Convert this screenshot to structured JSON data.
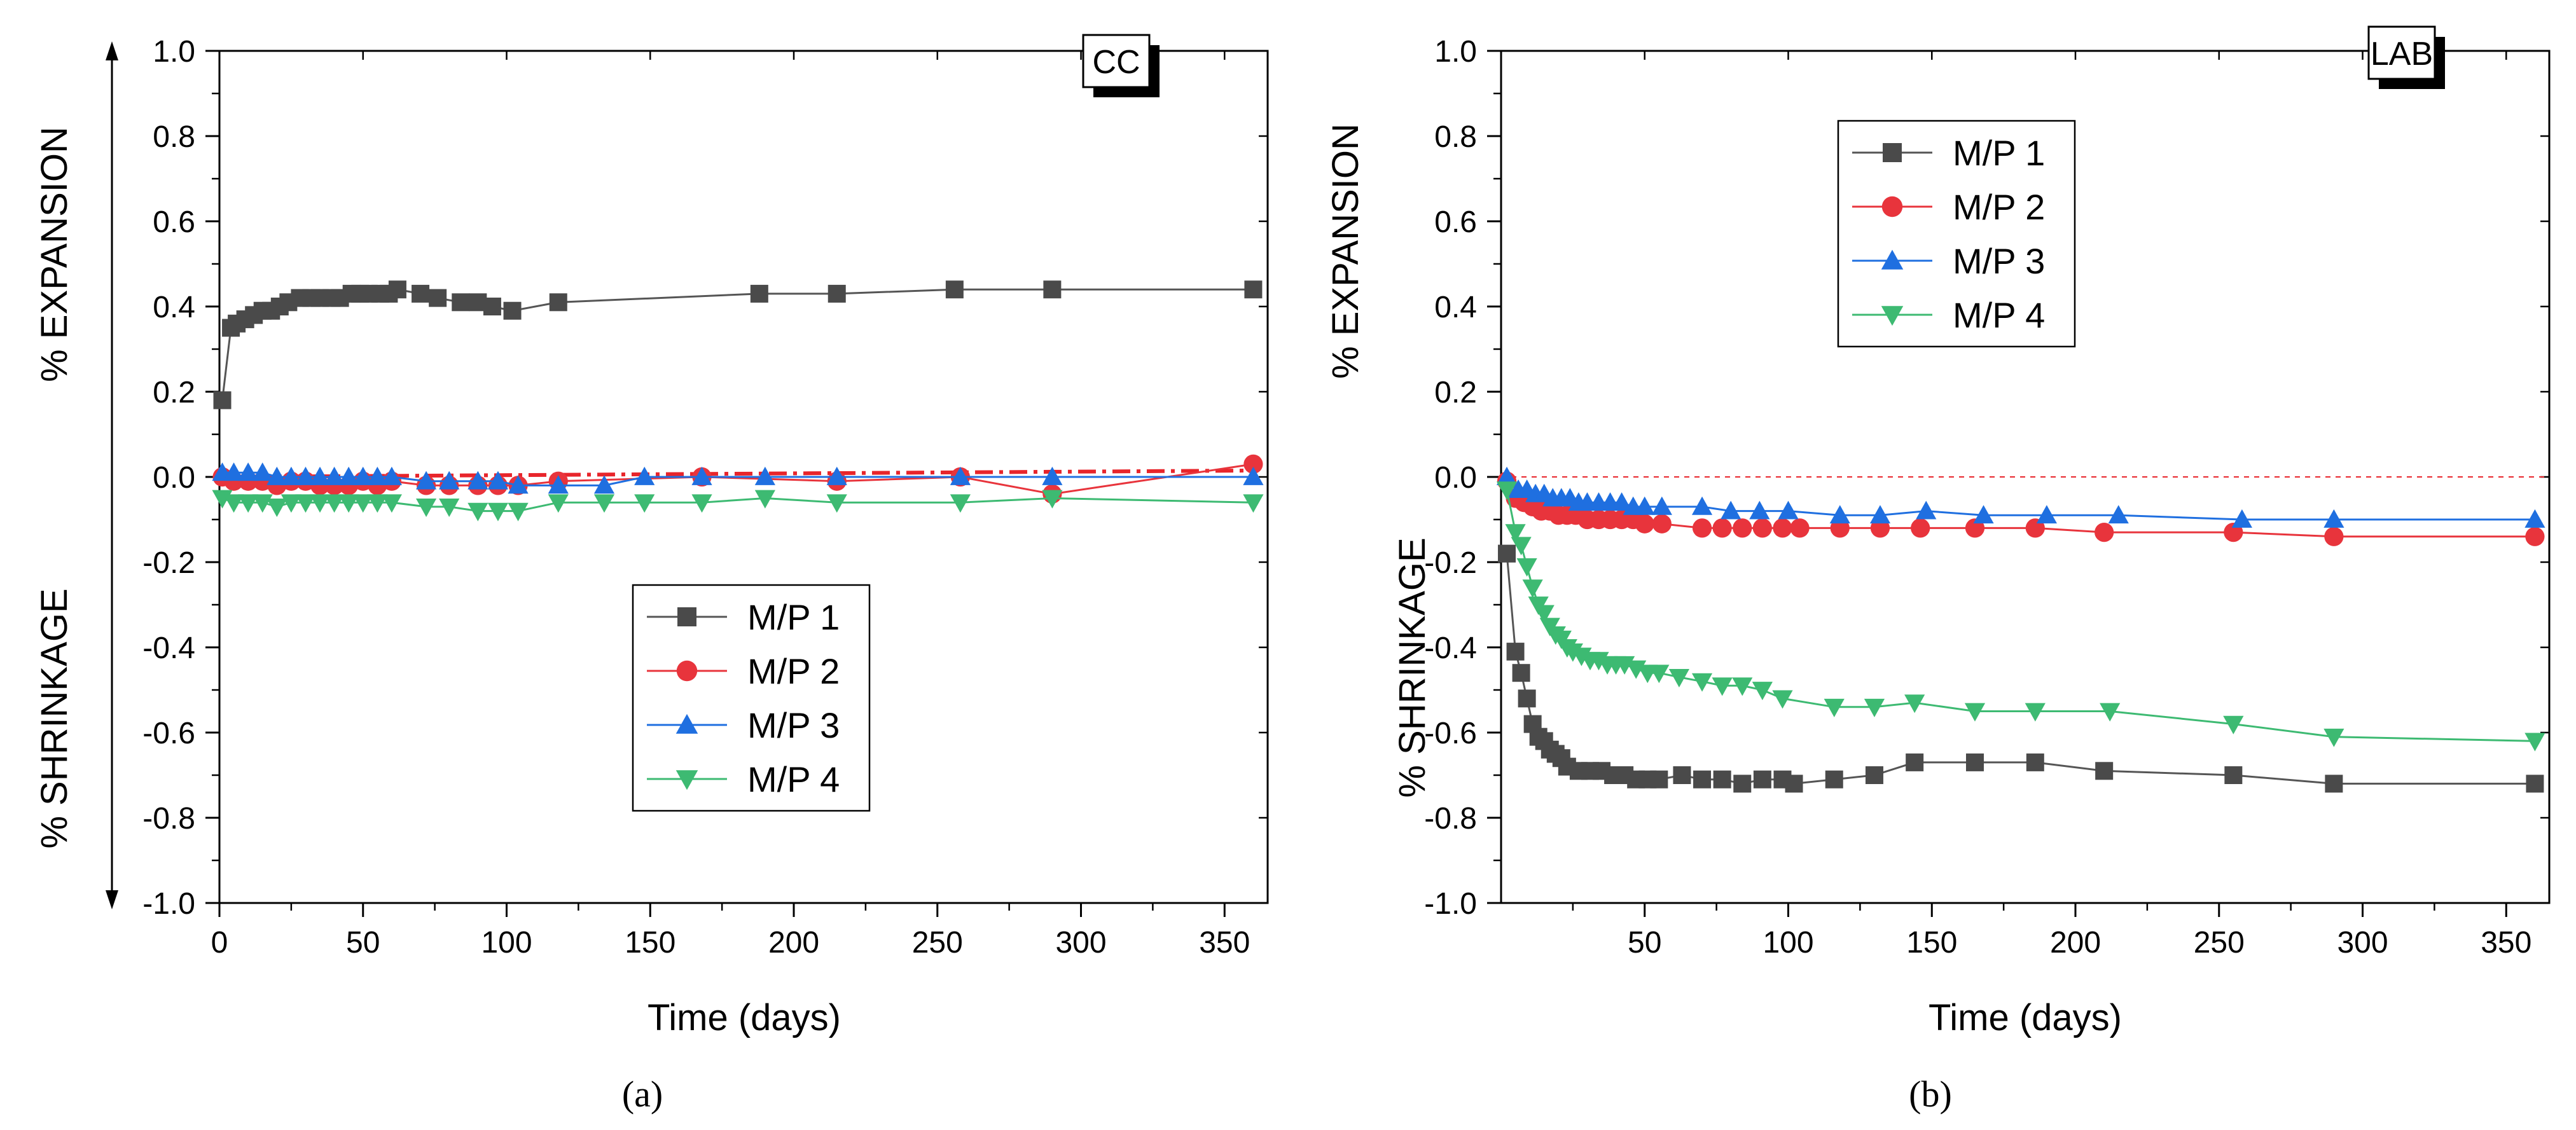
{
  "chart_data": [
    {
      "type": "line",
      "panel": "a",
      "caption": "(a)",
      "box_label": "CC",
      "xlabel": "Time (days)",
      "ylabel_top": "% EXPANSION",
      "ylabel_bottom": "% SHRINKAGE",
      "xlim": [
        0,
        365
      ],
      "ylim": [
        -1.0,
        1.0
      ],
      "xticks": [
        0,
        50,
        100,
        150,
        200,
        250,
        300,
        350
      ],
      "yticks": [
        -1.0,
        -0.8,
        -0.6,
        -0.4,
        -0.2,
        0.0,
        0.2,
        0.4,
        0.6,
        0.8,
        1.0
      ],
      "ytick_labels": [
        "-1.0",
        "-0.8",
        "-0.6",
        "-0.4",
        "-0.2",
        "0.0",
        "0.2",
        "0.4",
        "0.6",
        "0.8",
        "1.0"
      ],
      "legend_position": "center",
      "reference_line": {
        "style": "dash-dot",
        "color": "#e8252b",
        "from": [
          0,
          0.0
        ],
        "to": [
          360,
          0.015
        ]
      },
      "series": [
        {
          "name": "M/P 1",
          "marker": "square",
          "color": "#4a4a4a",
          "line_color": "#555555",
          "x": [
            1,
            4,
            6,
            9,
            12,
            15,
            18,
            21,
            24,
            28,
            32,
            35,
            39,
            42,
            46,
            49,
            52,
            56,
            59,
            62,
            70,
            76,
            84,
            90,
            95,
            102,
            118,
            188,
            215,
            256,
            290,
            360
          ],
          "y": [
            0.18,
            0.35,
            0.36,
            0.37,
            0.38,
            0.39,
            0.39,
            0.4,
            0.41,
            0.42,
            0.42,
            0.42,
            0.42,
            0.42,
            0.43,
            0.43,
            0.43,
            0.43,
            0.43,
            0.44,
            0.43,
            0.42,
            0.41,
            0.41,
            0.4,
            0.39,
            0.41,
            0.43,
            0.43,
            0.44,
            0.44,
            0.44
          ]
        },
        {
          "name": "M/P 2",
          "marker": "circle",
          "color": "#e8343c",
          "line_color": "#e8343c",
          "x": [
            1,
            5,
            10,
            15,
            20,
            25,
            30,
            35,
            40,
            45,
            50,
            55,
            60,
            72,
            80,
            90,
            97,
            104,
            118,
            168,
            215,
            258,
            290,
            360
          ],
          "y": [
            0.0,
            -0.01,
            -0.01,
            -0.01,
            -0.02,
            -0.01,
            -0.01,
            -0.02,
            -0.02,
            -0.02,
            -0.01,
            -0.02,
            -0.01,
            -0.02,
            -0.02,
            -0.02,
            -0.02,
            -0.02,
            -0.01,
            0.0,
            -0.01,
            0.0,
            -0.04,
            0.03
          ]
        },
        {
          "name": "M/P 3",
          "marker": "triangle-up",
          "color": "#1f6fe0",
          "line_color": "#1f6fe0",
          "x": [
            1,
            5,
            10,
            15,
            20,
            25,
            30,
            35,
            40,
            45,
            50,
            55,
            60,
            72,
            80,
            90,
            97,
            104,
            118,
            134,
            148,
            168,
            190,
            215,
            258,
            290,
            360
          ],
          "y": [
            0.01,
            0.01,
            0.01,
            0.01,
            0.0,
            0.0,
            0.0,
            0.0,
            0.0,
            0.0,
            0.0,
            0.0,
            0.0,
            -0.01,
            -0.01,
            -0.01,
            -0.01,
            -0.02,
            -0.02,
            -0.02,
            0.0,
            0.0,
            0.0,
            0.0,
            0.0,
            0.0,
            0.0
          ]
        },
        {
          "name": "M/P 4",
          "marker": "triangle-down",
          "color": "#3dba72",
          "line_color": "#3dba72",
          "x": [
            1,
            5,
            10,
            15,
            20,
            25,
            30,
            35,
            40,
            45,
            50,
            55,
            60,
            72,
            80,
            90,
            97,
            104,
            118,
            134,
            148,
            168,
            190,
            215,
            258,
            290,
            360
          ],
          "y": [
            -0.05,
            -0.06,
            -0.06,
            -0.06,
            -0.07,
            -0.06,
            -0.06,
            -0.06,
            -0.06,
            -0.06,
            -0.06,
            -0.06,
            -0.06,
            -0.07,
            -0.07,
            -0.08,
            -0.08,
            -0.08,
            -0.06,
            -0.06,
            -0.06,
            -0.06,
            -0.05,
            -0.06,
            -0.06,
            -0.05,
            -0.06
          ]
        }
      ]
    },
    {
      "type": "line",
      "panel": "b",
      "caption": "(b)",
      "box_label": "LAB",
      "xlabel": "Time (days)",
      "ylabel_top": "% EXPANSION",
      "ylabel_bottom": "% SHRINKAGE",
      "xlim": [
        0,
        365
      ],
      "ylim": [
        -1.0,
        1.0
      ],
      "xticks": [
        50,
        100,
        150,
        200,
        250,
        300,
        350
      ],
      "yticks": [
        -1.0,
        -0.8,
        -0.6,
        -0.4,
        -0.2,
        0.0,
        0.2,
        0.4,
        0.6,
        0.8,
        1.0
      ],
      "ytick_labels": [
        "-1.0",
        "-0.8",
        "-0.6",
        "-0.4",
        "-0.2",
        "0.0",
        "0.2",
        "0.4",
        "0.6",
        "0.8",
        "1.0"
      ],
      "legend_position": "top-left",
      "reference_line": {
        "style": "dashed",
        "color": "#e8252b",
        "from": [
          0,
          0.0
        ],
        "to": [
          365,
          0.0
        ]
      },
      "series": [
        {
          "name": "M/P 1",
          "marker": "square",
          "color": "#4a4a4a",
          "line_color": "#555555",
          "x": [
            2,
            5,
            7,
            9,
            11,
            13,
            15,
            17,
            19,
            21,
            23,
            27,
            31,
            35,
            39,
            43,
            47,
            51,
            55,
            63,
            70,
            77,
            84,
            91,
            98,
            102,
            116,
            130,
            144,
            165,
            186,
            210,
            255,
            290,
            360
          ],
          "y": [
            -0.18,
            -0.41,
            -0.46,
            -0.52,
            -0.58,
            -0.61,
            -0.62,
            -0.64,
            -0.65,
            -0.66,
            -0.68,
            -0.69,
            -0.69,
            -0.69,
            -0.7,
            -0.7,
            -0.71,
            -0.71,
            -0.71,
            -0.7,
            -0.71,
            -0.71,
            -0.72,
            -0.71,
            -0.71,
            -0.72,
            -0.71,
            -0.7,
            -0.67,
            -0.67,
            -0.67,
            -0.69,
            -0.7,
            -0.72,
            -0.72
          ]
        },
        {
          "name": "M/P 2",
          "marker": "circle",
          "color": "#e8343c",
          "line_color": "#e8343c",
          "x": [
            2,
            5,
            8,
            11,
            14,
            17,
            20,
            23,
            26,
            30,
            34,
            38,
            42,
            46,
            50,
            56,
            70,
            77,
            84,
            91,
            98,
            104,
            118,
            132,
            146,
            165,
            186,
            210,
            255,
            290,
            360
          ],
          "y": [
            -0.01,
            -0.05,
            -0.06,
            -0.07,
            -0.08,
            -0.08,
            -0.09,
            -0.09,
            -0.09,
            -0.1,
            -0.1,
            -0.1,
            -0.1,
            -0.1,
            -0.11,
            -0.11,
            -0.12,
            -0.12,
            -0.12,
            -0.12,
            -0.12,
            -0.12,
            -0.12,
            -0.12,
            -0.12,
            -0.12,
            -0.12,
            -0.13,
            -0.13,
            -0.14,
            -0.14
          ]
        },
        {
          "name": "M/P 3",
          "marker": "triangle-up",
          "color": "#1f6fe0",
          "line_color": "#1f6fe0",
          "x": [
            2,
            6,
            9,
            12,
            15,
            18,
            21,
            24,
            27,
            30,
            34,
            38,
            42,
            46,
            50,
            56,
            70,
            80,
            90,
            100,
            118,
            132,
            148,
            168,
            190,
            215,
            258,
            290,
            360
          ],
          "y": [
            0.0,
            -0.03,
            -0.03,
            -0.04,
            -0.04,
            -0.05,
            -0.05,
            -0.05,
            -0.06,
            -0.06,
            -0.06,
            -0.06,
            -0.06,
            -0.07,
            -0.07,
            -0.07,
            -0.07,
            -0.08,
            -0.08,
            -0.08,
            -0.09,
            -0.09,
            -0.08,
            -0.09,
            -0.09,
            -0.09,
            -0.1,
            -0.1,
            -0.1
          ]
        },
        {
          "name": "M/P 4",
          "marker": "triangle-down",
          "color": "#3dba72",
          "line_color": "#3dba72",
          "x": [
            2,
            5,
            7,
            9,
            11,
            13,
            15,
            17,
            19,
            21,
            23,
            25,
            28,
            31,
            34,
            37,
            40,
            43,
            47,
            51,
            55,
            62,
            70,
            77,
            84,
            91,
            98,
            116,
            130,
            144,
            165,
            186,
            212,
            255,
            290,
            360
          ],
          "y": [
            -0.03,
            -0.13,
            -0.16,
            -0.21,
            -0.26,
            -0.3,
            -0.32,
            -0.35,
            -0.37,
            -0.38,
            -0.4,
            -0.41,
            -0.42,
            -0.43,
            -0.43,
            -0.44,
            -0.44,
            -0.44,
            -0.45,
            -0.46,
            -0.46,
            -0.47,
            -0.48,
            -0.49,
            -0.49,
            -0.5,
            -0.52,
            -0.54,
            -0.54,
            -0.53,
            -0.55,
            -0.55,
            -0.55,
            -0.58,
            -0.61,
            -0.62
          ]
        }
      ]
    }
  ]
}
